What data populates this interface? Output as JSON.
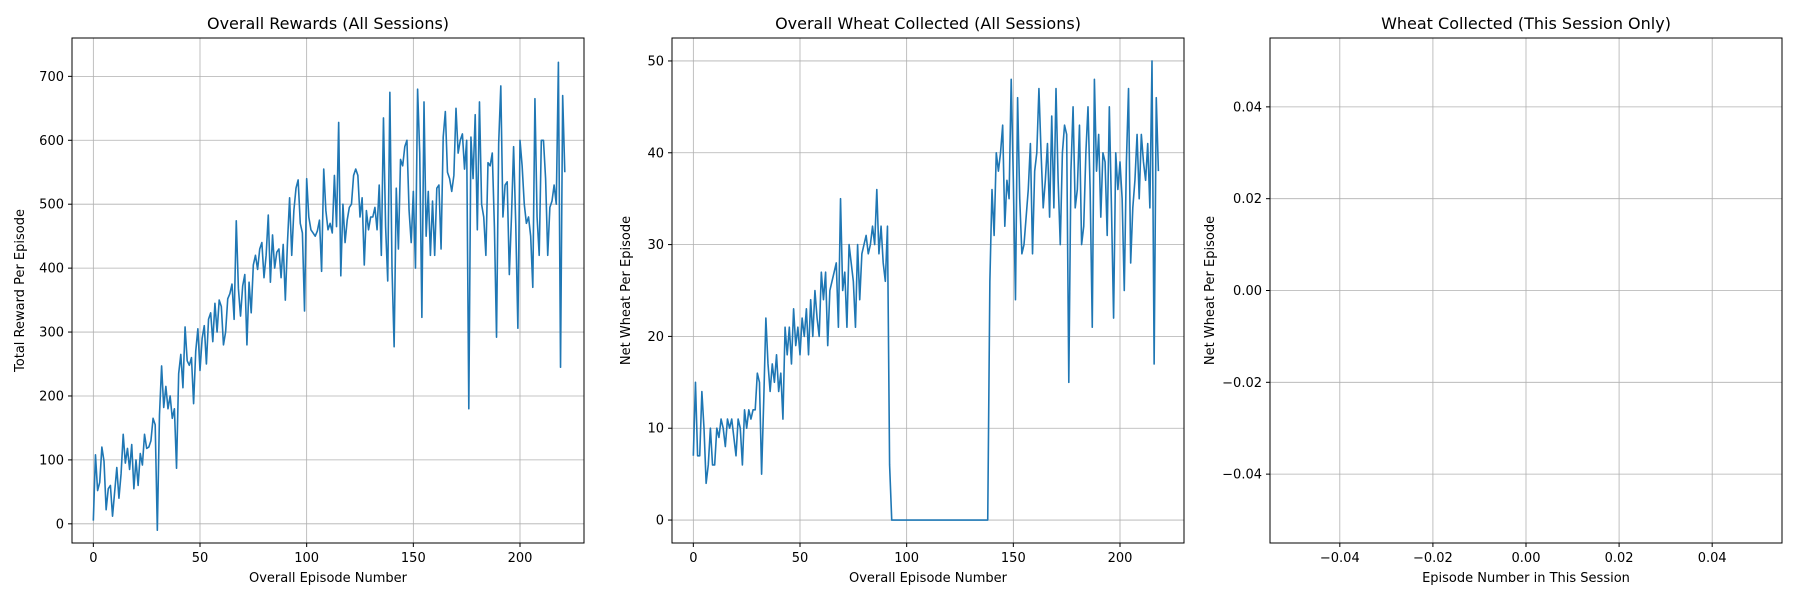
{
  "chart_data": [
    {
      "type": "line",
      "title": "Overall Rewards (All Sessions)",
      "xlabel": "Overall Episode Number",
      "ylabel": "Total Reward Per Episode",
      "xlim": [
        -10,
        230
      ],
      "ylim": [
        -30,
        760
      ],
      "xticks": [
        0,
        50,
        100,
        150,
        200
      ],
      "yticks": [
        0,
        100,
        200,
        300,
        400,
        500,
        600,
        700
      ],
      "grid": true,
      "color": "#1f77b4",
      "series": [
        {
          "x0": 0,
          "values": [
            5,
            108,
            52,
            65,
            120,
            98,
            22,
            55,
            60,
            12,
            50,
            88,
            40,
            78,
            140,
            95,
            118,
            85,
            124,
            55,
            100,
            60,
            110,
            92,
            140,
            118,
            120,
            130,
            165,
            155,
            -10,
            170,
            247,
            182,
            215,
            180,
            200,
            165,
            180,
            87,
            235,
            265,
            213,
            308,
            255,
            248,
            260,
            188,
            270,
            305,
            240,
            290,
            310,
            250,
            320,
            330,
            285,
            345,
            300,
            350,
            340,
            280,
            300,
            352,
            360,
            375,
            320,
            474,
            368,
            325,
            372,
            390,
            280,
            378,
            330,
            405,
            420,
            398,
            430,
            440,
            385,
            420,
            483,
            378,
            452,
            400,
            425,
            430,
            385,
            437,
            350,
            440,
            510,
            420,
            490,
            525,
            538,
            470,
            455,
            333,
            540,
            480,
            460,
            455,
            450,
            458,
            475,
            395,
            555,
            490,
            460,
            470,
            455,
            545,
            465,
            628,
            388,
            500,
            440,
            475,
            495,
            500,
            545,
            555,
            545,
            480,
            510,
            405,
            490,
            460,
            480,
            480,
            495,
            460,
            530,
            420,
            635,
            465,
            380,
            675,
            400,
            277,
            525,
            430,
            570,
            560,
            590,
            600,
            490,
            440,
            520,
            400,
            680,
            580,
            323,
            660,
            450,
            520,
            420,
            505,
            420,
            525,
            530,
            430,
            605,
            645,
            550,
            540,
            520,
            545,
            650,
            580,
            600,
            610,
            555,
            600,
            180,
            605,
            540,
            640,
            460,
            660,
            500,
            480,
            420,
            565,
            560,
            580,
            465,
            292,
            595,
            685,
            480,
            530,
            535,
            390,
            480,
            590,
            470,
            306,
            600,
            560,
            500,
            470,
            480,
            450,
            370,
            665,
            480,
            420,
            600,
            600,
            540,
            420,
            495,
            505,
            530,
            500,
            722,
            245,
            670,
            550
          ]
        }
      ]
    },
    {
      "type": "line",
      "title": "Overall Wheat Collected (All Sessions)",
      "xlabel": "Overall Episode Number",
      "ylabel": "Net Wheat Per Episode",
      "xlim": [
        -10,
        230
      ],
      "ylim": [
        -2.5,
        52.5
      ],
      "xticks": [
        0,
        50,
        100,
        150,
        200
      ],
      "yticks": [
        0,
        10,
        20,
        30,
        40,
        50
      ],
      "grid": true,
      "color": "#1f77b4",
      "series": [
        {
          "x0": 0,
          "values": [
            7,
            15,
            7,
            7,
            14,
            10,
            4,
            6,
            10,
            6,
            6,
            10,
            9,
            11,
            10,
            8,
            11,
            10,
            11,
            9,
            7,
            11,
            10,
            6,
            12,
            10,
            12,
            11,
            12,
            12,
            16,
            15,
            5,
            13,
            22,
            17,
            14,
            17,
            15,
            18,
            14,
            16,
            11,
            21,
            18,
            21,
            17,
            23,
            19,
            21,
            18,
            22,
            20,
            23,
            18,
            24,
            20,
            25,
            22,
            20,
            27,
            24,
            27,
            19,
            25,
            26,
            27,
            28,
            21,
            35,
            25,
            27,
            21,
            30,
            28,
            26,
            21,
            30,
            24,
            29,
            30,
            31,
            29,
            30,
            32,
            30,
            36,
            29,
            32,
            28,
            26,
            32,
            6,
            0,
            0,
            0,
            0,
            0,
            0,
            0,
            0,
            0,
            0,
            0,
            0,
            0,
            0,
            0,
            0,
            0,
            0,
            0,
            0,
            0,
            0,
            0,
            0,
            0,
            0,
            0,
            0,
            0,
            0,
            0,
            0,
            0,
            0,
            0,
            0,
            0,
            0,
            0,
            0,
            0,
            0,
            0,
            0,
            0,
            0,
            26,
            36,
            31,
            40,
            38,
            40,
            43,
            32,
            37,
            35,
            48,
            37,
            24,
            46,
            35,
            29,
            30,
            33,
            36,
            41,
            29,
            38,
            40,
            47,
            40,
            34,
            37,
            41,
            33,
            44,
            34,
            47,
            37,
            30,
            40,
            43,
            42,
            15,
            38,
            45,
            34,
            36,
            43,
            30,
            32,
            40,
            45,
            36,
            21,
            48,
            38,
            42,
            33,
            40,
            39,
            31,
            45,
            34,
            22,
            40,
            36,
            39,
            35,
            25,
            39,
            47,
            28,
            34,
            37,
            42,
            35,
            42,
            39,
            37,
            41,
            34,
            50,
            17,
            46,
            38
          ]
        }
      ]
    },
    {
      "type": "line",
      "title": "Wheat Collected (This Session Only)",
      "xlabel": "Episode Number in This Session",
      "ylabel": "Net Wheat Per Episode",
      "xlim": [
        -0.055,
        0.055
      ],
      "ylim": [
        -0.055,
        0.055
      ],
      "xticks": [
        -0.04,
        -0.02,
        0.0,
        0.02,
        0.04
      ],
      "xtick_labels": [
        "−0.04",
        "−0.02",
        "0.00",
        "0.02",
        "0.04"
      ],
      "yticks": [
        -0.04,
        -0.02,
        0.0,
        0.02,
        0.04
      ],
      "ytick_labels": [
        "−0.04",
        "−0.02",
        "0.00",
        "0.02",
        "0.04"
      ],
      "grid": true,
      "color": "#1f77b4",
      "series": []
    }
  ]
}
